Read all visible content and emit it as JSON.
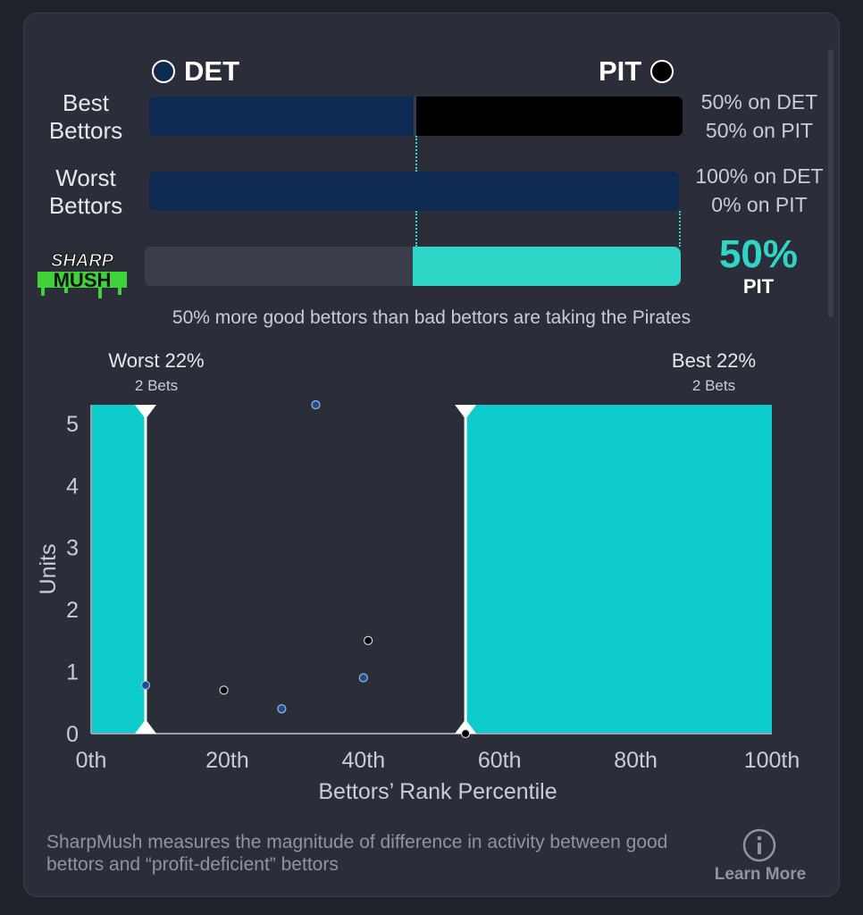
{
  "teams": {
    "left": {
      "code": "DET",
      "color": "#0e2a52"
    },
    "right": {
      "code": "PIT",
      "color": "#000000"
    }
  },
  "rows": {
    "best": {
      "label_line1": "Best",
      "label_line2": "Bettors",
      "left_share": 0.5,
      "stat1": "50% on DET",
      "stat2": "50% on PIT"
    },
    "worst": {
      "label_line1": "Worst",
      "label_line2": "Bettors",
      "left_share": 1.0,
      "stat1": "100% on DET",
      "stat2": "0% on PIT"
    }
  },
  "sharpmush": {
    "logo_line1": "SHARP",
    "logo_line2": "MUSH",
    "pct": "50%",
    "team": "PIT",
    "right_share": 0.5,
    "accent": "#2fd6c8"
  },
  "summary": "50% more good bettors than bad bettors are taking the Pirates",
  "chart_data": {
    "type": "scatter",
    "xlabel": "Bettors’ Rank Percentile",
    "ylabel": "Units",
    "xlim": [
      0,
      100
    ],
    "ylim": [
      0,
      5.3
    ],
    "x_ticks": [
      {
        "value": 0,
        "label": "0th"
      },
      {
        "value": 20,
        "label": "20th"
      },
      {
        "value": 40,
        "label": "40th"
      },
      {
        "value": 60,
        "label": "60th"
      },
      {
        "value": 80,
        "label": "80th"
      },
      {
        "value": 100,
        "label": "100th"
      }
    ],
    "y_ticks": [
      0,
      1,
      2,
      3,
      4,
      5
    ],
    "regions": [
      {
        "label": "Worst 22%",
        "sublabel": "2 Bets",
        "x_start": 0,
        "x_end": 8,
        "color": "#0fcccc"
      },
      {
        "label": "Best 22%",
        "sublabel": "2 Bets",
        "x_start": 55,
        "x_end": 100,
        "color": "#0fcccc"
      }
    ],
    "points": [
      {
        "x": 8,
        "y": 0.78,
        "team": "DET"
      },
      {
        "x": 19.5,
        "y": 0.7,
        "team": "PIT"
      },
      {
        "x": 28,
        "y": 0.4,
        "team": "DET"
      },
      {
        "x": 33,
        "y": 5.3,
        "team": "DET"
      },
      {
        "x": 40,
        "y": 0.9,
        "team": "DET"
      },
      {
        "x": 40.7,
        "y": 1.5,
        "team": "PIT"
      },
      {
        "x": 55,
        "y": 0,
        "team": "PIT"
      }
    ],
    "grid": false
  },
  "footer": {
    "text": "SharpMush measures the magnitude of difference in activity between good bettors and “profit-deficient” bettors",
    "learn_more": "Learn More"
  }
}
